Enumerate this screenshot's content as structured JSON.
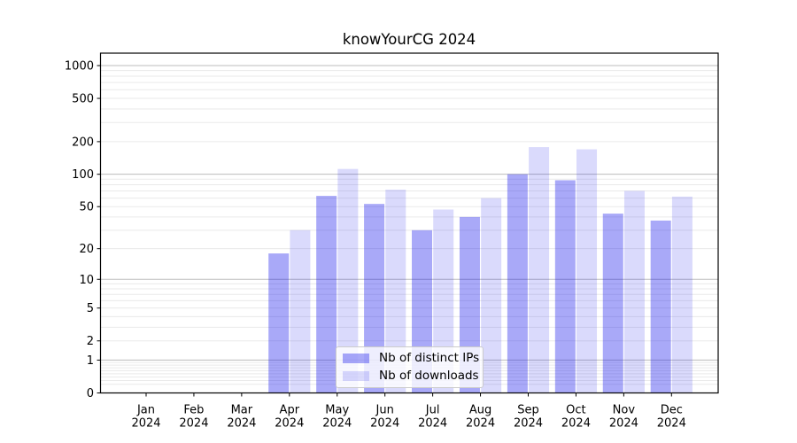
{
  "title": "knowYourCG 2024",
  "colors": {
    "series_strong": "rgba(10,10,235,0.35)",
    "series_light": "rgba(10,10,235,0.15)",
    "grid_major": "#bdbdbd",
    "grid_minor": "#eaeaea",
    "spine": "#000000",
    "background": "#ffffff"
  },
  "chart_data": {
    "type": "bar",
    "title": "knowYourCG 2024",
    "categories": [
      "Jan 2024",
      "Feb 2024",
      "Mar 2024",
      "Apr 2024",
      "May 2024",
      "Jun 2024",
      "Jul 2024",
      "Aug 2024",
      "Sep 2024",
      "Oct 2024",
      "Nov 2024",
      "Dec 2024"
    ],
    "series": [
      {
        "name": "Nb of distinct IPs",
        "color": "rgba(10,10,235,0.35)",
        "values": [
          0,
          0,
          0,
          18,
          63,
          53,
          30,
          40,
          100,
          88,
          43,
          37
        ]
      },
      {
        "name": "Nb of downloads",
        "color": "rgba(10,10,235,0.15)",
        "values": [
          0,
          0,
          0,
          30,
          112,
          72,
          47,
          60,
          178,
          170,
          70,
          62
        ]
      }
    ],
    "xlabel": "",
    "ylabel": "",
    "yscale": "log1p",
    "yticks": [
      0,
      1,
      2,
      5,
      10,
      20,
      50,
      100,
      200,
      500,
      1000
    ],
    "ylim": [
      0,
      1300
    ],
    "grid": "both",
    "legend_position": "lower center"
  }
}
